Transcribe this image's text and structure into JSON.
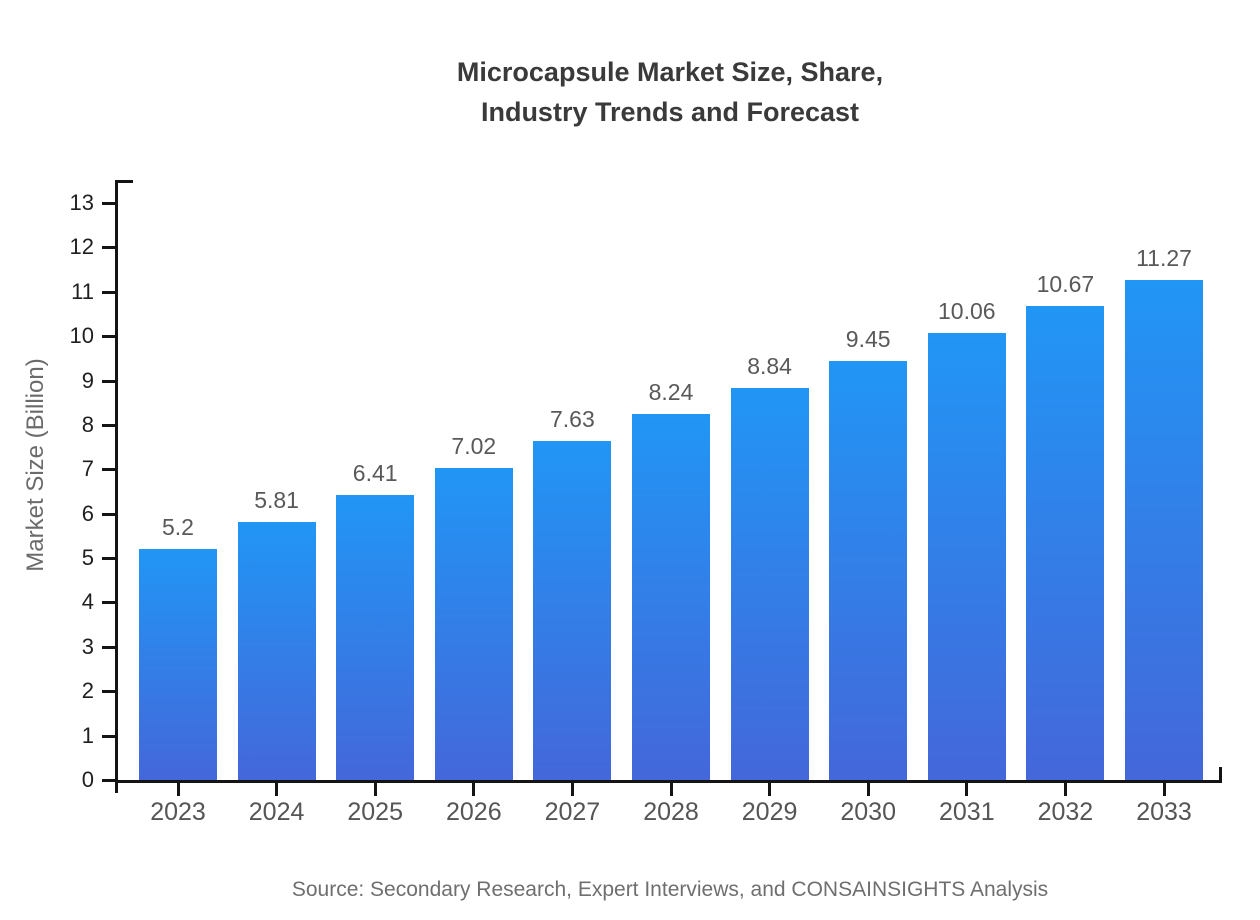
{
  "page": {
    "title_line1": "Microcapsule Market Size, Share,",
    "title_line2": "Industry Trends and Forecast",
    "source": "Source: Secondary Research, Expert Interviews, and CONSAINSIGHTS Analysis"
  },
  "chart_data": {
    "type": "bar",
    "title": "Microcapsule Market Size, Share, Industry Trends and Forecast",
    "categories": [
      "2023",
      "2024",
      "2025",
      "2026",
      "2027",
      "2028",
      "2029",
      "2030",
      "2031",
      "2032",
      "2033"
    ],
    "values": [
      5.2,
      5.81,
      6.41,
      7.02,
      7.63,
      8.24,
      8.84,
      9.45,
      10.06,
      10.67,
      11.27
    ],
    "value_labels": [
      "5.2",
      "5.81",
      "6.41",
      "7.02",
      "7.63",
      "8.24",
      "8.84",
      "9.45",
      "10.06",
      "10.67",
      "11.27"
    ],
    "xlabel": "",
    "ylabel": "Market Size (Billion)",
    "ylim": [
      0,
      13
    ],
    "y_ticks": [
      0,
      1,
      2,
      3,
      4,
      5,
      6,
      7,
      8,
      9,
      10,
      11,
      12,
      13
    ],
    "grid": false,
    "legend": "none",
    "colors": {
      "bar_gradient_top": "#2196f5",
      "bar_gradient_bottom": "#4467da",
      "axis": "#141414",
      "y_tick_label": "#1f1f1f",
      "x_tick_label": "#555555",
      "value_label": "#595959",
      "title": "#3a3a3a",
      "axis_title": "#6b6b6b",
      "source": "#6f6f6f",
      "background": "#ffffff"
    },
    "source": "Source: Secondary Research, Expert Interviews, and CONSAINSIGHTS Analysis"
  }
}
